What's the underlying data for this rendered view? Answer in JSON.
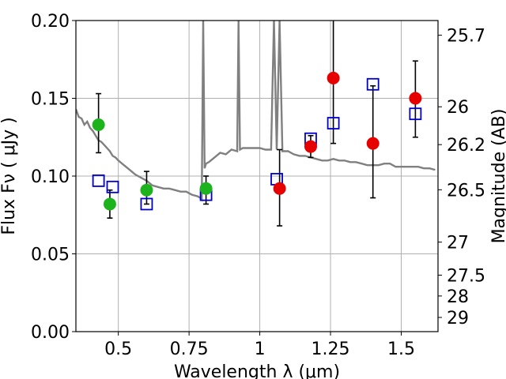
{
  "chart_data": {
    "type": "scatter",
    "title": "",
    "xlabel": "Wavelength  λ (μm)",
    "ylabel": "Flux  Fν  ( μJy )",
    "y2label": "Magnitude (AB)",
    "xlim": [
      0.35,
      1.63
    ],
    "ylim": [
      0.0,
      0.2
    ],
    "grid": true,
    "x_ticks": [
      {
        "value": 0.5,
        "label": "0.5"
      },
      {
        "value": 0.75,
        "label": "0.75"
      },
      {
        "value": 1.0,
        "label": "1"
      },
      {
        "value": 1.25,
        "label": "1.25"
      },
      {
        "value": 1.5,
        "label": "1.5"
      }
    ],
    "y_ticks": [
      {
        "value": 0.0,
        "label": "0.00"
      },
      {
        "value": 0.05,
        "label": "0.05"
      },
      {
        "value": 0.1,
        "label": "0.10"
      },
      {
        "value": 0.15,
        "label": "0.15"
      },
      {
        "value": 0.2,
        "label": "0.20"
      }
    ],
    "y2_ticks": [
      {
        "value": 25.7,
        "label": "25.7"
      },
      {
        "value": 26.0,
        "label": "26"
      },
      {
        "value": 26.2,
        "label": "26.2"
      },
      {
        "value": 26.5,
        "label": "26.5"
      },
      {
        "value": 27.0,
        "label": "27"
      },
      {
        "value": 27.5,
        "label": "27.5"
      },
      {
        "value": 28.0,
        "label": "28"
      },
      {
        "value": 29.0,
        "label": "29"
      }
    ],
    "colors": {
      "model": "#808080",
      "model_points": "#0000cc",
      "obs_green": "#1db31d",
      "obs_red": "#e60000",
      "grid": "#b0b0b0"
    },
    "series": [
      {
        "kind": "model_spectrum",
        "x": [
          0.35,
          0.36,
          0.37,
          0.38,
          0.39,
          0.4,
          0.41,
          0.42,
          0.43,
          0.44,
          0.45,
          0.46,
          0.47,
          0.48,
          0.49,
          0.5,
          0.52,
          0.54,
          0.56,
          0.58,
          0.6,
          0.62,
          0.64,
          0.66,
          0.68,
          0.7,
          0.72,
          0.74,
          0.76,
          0.78,
          0.79,
          0.795,
          0.8,
          0.805,
          0.81,
          0.82,
          0.84,
          0.86,
          0.88,
          0.9,
          0.92,
          0.925,
          0.93,
          0.94,
          0.96,
          0.98,
          1.0,
          1.02,
          1.04,
          1.05,
          1.06,
          1.07,
          1.08,
          1.1,
          1.12,
          1.14,
          1.16,
          1.18,
          1.2,
          1.22,
          1.24,
          1.26,
          1.28,
          1.3,
          1.32,
          1.34,
          1.36,
          1.38,
          1.4,
          1.42,
          1.44,
          1.46,
          1.48,
          1.5,
          1.52,
          1.54,
          1.56,
          1.58,
          1.6,
          1.62
        ],
        "y": [
          0.143,
          0.138,
          0.137,
          0.133,
          0.135,
          0.131,
          0.129,
          0.126,
          0.123,
          0.122,
          0.12,
          0.118,
          0.116,
          0.113,
          0.112,
          0.11,
          0.107,
          0.104,
          0.101,
          0.099,
          0.097,
          0.094,
          0.093,
          0.092,
          0.092,
          0.091,
          0.09,
          0.09,
          0.088,
          0.087,
          0.086,
          0.085,
          0.2,
          0.105,
          0.108,
          0.109,
          0.112,
          0.115,
          0.114,
          0.117,
          0.116,
          0.2,
          0.117,
          0.118,
          0.118,
          0.118,
          0.118,
          0.117,
          0.117,
          0.2,
          0.117,
          0.2,
          0.116,
          0.116,
          0.114,
          0.113,
          0.113,
          0.112,
          0.111,
          0.11,
          0.11,
          0.111,
          0.11,
          0.11,
          0.109,
          0.109,
          0.108,
          0.107,
          0.107,
          0.107,
          0.108,
          0.108,
          0.106,
          0.106,
          0.106,
          0.106,
          0.106,
          0.105,
          0.105,
          0.104
        ]
      },
      {
        "kind": "model_photometry",
        "x": [
          0.43,
          0.48,
          0.6,
          0.81,
          1.06,
          1.18,
          1.26,
          1.4,
          1.55
        ],
        "y": [
          0.097,
          0.093,
          0.082,
          0.088,
          0.098,
          0.124,
          0.134,
          0.159,
          0.14
        ]
      },
      {
        "kind": "observed_green",
        "x": [
          0.43,
          0.47,
          0.6,
          0.81
        ],
        "y": [
          0.133,
          0.082,
          0.091,
          0.092
        ],
        "yerr_low": [
          0.115,
          0.073,
          0.082,
          0.082
        ],
        "yerr_high": [
          0.153,
          0.091,
          0.103,
          0.1
        ]
      },
      {
        "kind": "observed_red",
        "x": [
          1.07,
          1.18,
          1.26,
          1.4,
          1.55
        ],
        "y": [
          0.092,
          0.119,
          0.163,
          0.121,
          0.15
        ],
        "yerr_low": [
          0.068,
          0.112,
          0.121,
          0.086,
          0.125
        ],
        "yerr_high": [
          0.117,
          0.126,
          0.206,
          0.158,
          0.174
        ]
      }
    ]
  }
}
